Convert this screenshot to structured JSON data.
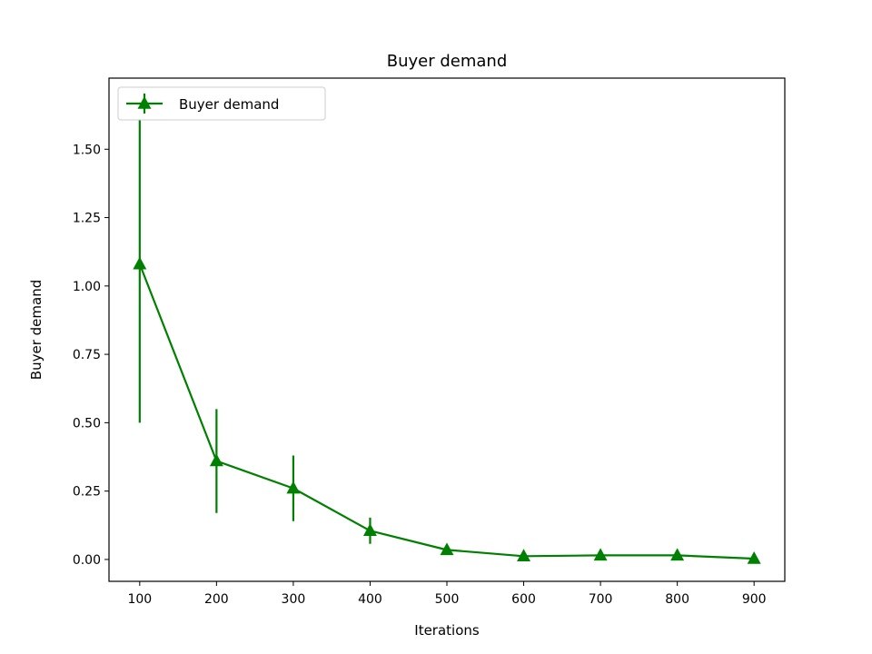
{
  "chart_data": {
    "type": "line",
    "title": "Buyer demand",
    "xlabel": "Iterations",
    "ylabel": "Buyer demand",
    "xlim": [
      60,
      940
    ],
    "ylim": [
      -0.08,
      1.76
    ],
    "x_ticks": [
      100,
      200,
      300,
      400,
      500,
      600,
      700,
      800,
      900
    ],
    "y_ticks": [
      0.0,
      0.25,
      0.5,
      0.75,
      1.0,
      1.25,
      1.5
    ],
    "y_tick_labels": [
      "0.00",
      "0.25",
      "0.50",
      "0.75",
      "1.00",
      "1.25",
      "1.50"
    ],
    "grid": false,
    "legend_position": "top-left",
    "series": [
      {
        "name": "Buyer demand",
        "color": "#008000",
        "marker": "triangle-up",
        "x": [
          100,
          200,
          300,
          400,
          500,
          600,
          700,
          800,
          900
        ],
        "y": [
          1.08,
          0.36,
          0.26,
          0.105,
          0.035,
          0.012,
          0.015,
          0.015,
          0.003
        ],
        "error": [
          0.58,
          0.19,
          0.12,
          0.048,
          0.005,
          0.005,
          0.005,
          0.005,
          0.005
        ]
      }
    ]
  }
}
